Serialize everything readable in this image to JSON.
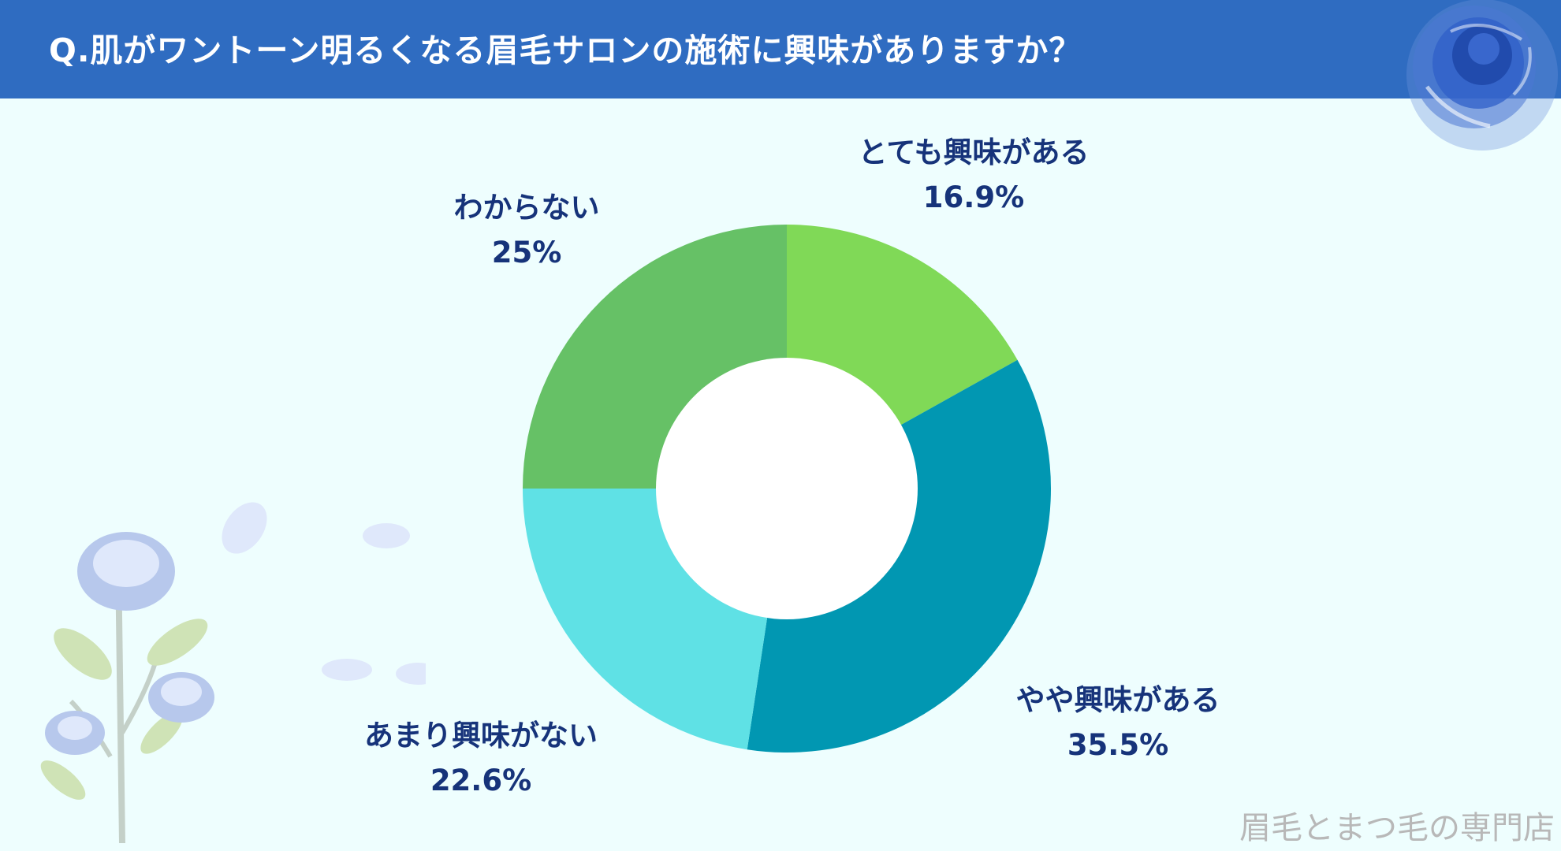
{
  "title": "Q.肌がワントーン明るくなる眉毛サロンの施術に興味がありますか？",
  "footer": "眉毛とまつ毛の専門店",
  "colors": {
    "header": "#2f6cc1",
    "background": "#eefefe",
    "label": "#16337a"
  },
  "chart_data": {
    "type": "pie",
    "donut": true,
    "title": "",
    "slices": [
      {
        "label": "とても興味がある",
        "value": 16.9,
        "display": "16.9%",
        "color": "#80d957"
      },
      {
        "label": "やや興味がある",
        "value": 35.5,
        "display": "35.5%",
        "color": "#0197b2"
      },
      {
        "label": "あまり興味がない",
        "value": 22.6,
        "display": "22.6%",
        "color": "#5fe1e5"
      },
      {
        "label": "わからない",
        "value": 25,
        "display": "25%",
        "color": "#66c166"
      }
    ]
  }
}
